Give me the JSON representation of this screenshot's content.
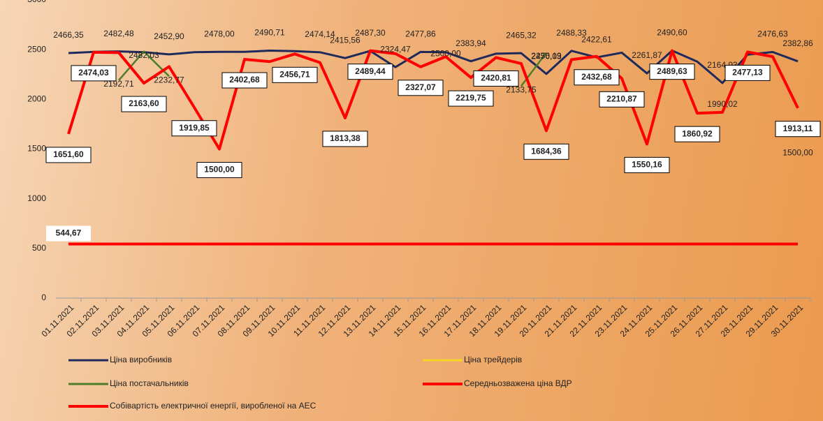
{
  "chart_data": {
    "type": "line",
    "categories": [
      "01.11.2021",
      "02.11.2021",
      "03.11.2021",
      "04.11.2021",
      "05.11.2021",
      "06.11.2021",
      "07.11.2021",
      "08.11.2021",
      "09.11.2021",
      "10.11.2021",
      "11.11.2021",
      "12.11.2021",
      "13.11.2021",
      "14.11.2021",
      "15.11.2021",
      "16.11.2021",
      "17.11.2021",
      "18.11.2021",
      "19.11.2021",
      "20.11.2021",
      "21.11.2021",
      "22.11.2021",
      "23.11.2021",
      "24.11.2021",
      "25.11.2021",
      "26.11.2021",
      "27.11.2021",
      "28.11.2021",
      "29.11.2021",
      "30.11.2021"
    ],
    "ylim": [
      0,
      3000
    ],
    "yticks": [
      0,
      500,
      1000,
      1500,
      2000,
      2500,
      3000
    ],
    "series": [
      {
        "name": "Ціна виробників",
        "color": "#1f2a5c",
        "values": [
          2466.35,
          2478,
          2482.48,
          2475,
          2452.9,
          2475,
          2478.0,
          2478,
          2490.71,
          2485,
          2474.14,
          2415.56,
          2487.3,
          2324.47,
          2477.86,
          2475,
          2383.94,
          2460,
          2465.32,
          2256.19,
          2488.33,
          2422.61,
          2470,
          2261.87,
          2490.6,
          2380,
          2164.93,
          2450,
          2476.63,
          2382.86
        ],
        "value_labels": [
          "2466,35",
          null,
          "2482,48",
          null,
          "2452,90",
          null,
          "2478,00",
          null,
          "2490,71",
          null,
          "2474,14",
          "2415,56",
          "2487,30",
          "2324,47",
          "2477,86",
          null,
          "2383,94",
          null,
          "2465,32",
          "2256,19",
          "2488,33",
          "2422,61",
          null,
          "2261,87",
          "2490,60",
          null,
          "2164,93",
          null,
          "2476,63",
          "2382,86"
        ]
      },
      {
        "name": "Ціна трейдерів",
        "color": "#f5d327",
        "values": [
          null,
          null,
          null,
          null,
          null,
          null,
          null,
          null,
          null,
          null,
          null,
          null,
          null,
          null,
          null,
          null,
          null,
          null,
          null,
          null,
          null,
          null,
          null,
          null,
          null,
          null,
          null,
          null,
          null,
          null
        ]
      },
      {
        "name": "Ціна постачальників",
        "color": "#4e7d2a",
        "values": [
          null,
          null,
          2192.71,
          2482.03,
          2232.77,
          null,
          null,
          null,
          null,
          null,
          null,
          null,
          null,
          null,
          null,
          2500.0,
          null,
          null,
          2133.75,
          2470.03,
          null,
          null,
          null,
          null,
          null,
          null,
          1990.02,
          null,
          null,
          1500.0
        ],
        "value_labels": [
          null,
          null,
          "2192,71",
          "2482,03",
          "2232,77",
          null,
          null,
          null,
          null,
          null,
          null,
          null,
          null,
          null,
          null,
          "2500,00",
          null,
          null,
          "2133,75",
          "2470,03",
          null,
          null,
          null,
          null,
          null,
          null,
          "1990,02",
          null,
          null,
          "1500,00"
        ]
      },
      {
        "name": "Середньозважена ціна ВДР",
        "color": "#ff0000",
        "values": [
          1651.6,
          2474.03,
          2470,
          2163.6,
          2330,
          1919.85,
          1500.0,
          2402.68,
          2380,
          2456.71,
          2370,
          1813.38,
          2489.44,
          2460,
          2327.07,
          2430,
          2219.75,
          2420.81,
          2360,
          1684.36,
          2400,
          2432.68,
          2210.87,
          1550.16,
          2489.63,
          1860.92,
          1870,
          2477.13,
          2430,
          1913.11
        ],
        "value_labels": [
          "1651,60",
          "2474,03",
          null,
          "2163,60",
          null,
          "1919,85",
          "1500,00",
          "2402,68",
          null,
          "2456,71",
          null,
          "1813,38",
          "2489,44",
          null,
          "2327,07",
          null,
          "2219,75",
          "2420,81",
          null,
          "1684,36",
          null,
          "2432,68",
          "2210,87",
          "1550,16",
          "2489,63",
          "1860,92",
          null,
          "2477,13",
          null,
          "1913,11"
        ]
      },
      {
        "name": "Собівартість електричної енергії, виробленої на АЕС",
        "color": "#ff0000",
        "values": [
          544.67,
          544.67,
          544.67,
          544.67,
          544.67,
          544.67,
          544.67,
          544.67,
          544.67,
          544.67,
          544.67,
          544.67,
          544.67,
          544.67,
          544.67,
          544.67,
          544.67,
          544.67,
          544.67,
          544.67,
          544.67,
          544.67,
          544.67,
          544.67,
          544.67,
          544.67,
          544.67,
          544.67,
          544.67,
          544.67
        ],
        "value_labels": [
          "544,67",
          null,
          null,
          null,
          null,
          null,
          null,
          null,
          null,
          null,
          null,
          null,
          null,
          null,
          null,
          null,
          null,
          null,
          null,
          null,
          null,
          null,
          null,
          null,
          null,
          null,
          null,
          null,
          null,
          null
        ]
      }
    ]
  }
}
